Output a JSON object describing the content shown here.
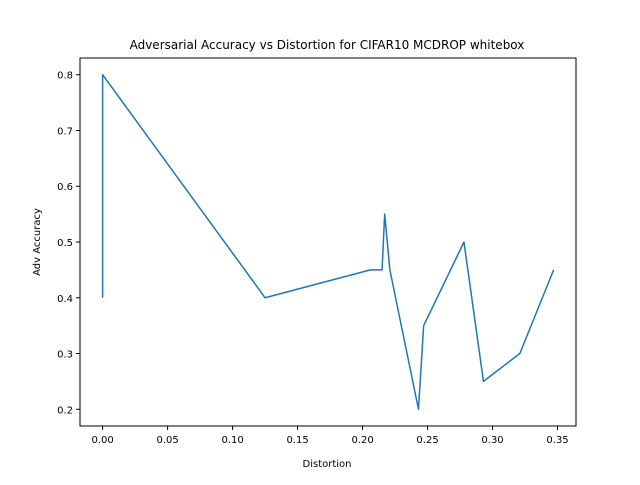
{
  "chart_data": {
    "type": "line",
    "title": "Adversarial Accuracy vs Distortion for CIFAR10 MCDROP whitebox",
    "xlabel": "Distortion",
    "ylabel": "Adv Accuracy",
    "xlim": [
      -0.0174,
      0.3642
    ],
    "ylim": [
      0.17,
      0.83
    ],
    "xticks": [
      0.0,
      0.05,
      0.1,
      0.15,
      0.2,
      0.25,
      0.3,
      0.35
    ],
    "xtick_labels": [
      "0.00",
      "0.05",
      "0.10",
      "0.15",
      "0.20",
      "0.25",
      "0.30",
      "0.35"
    ],
    "yticks": [
      0.2,
      0.3,
      0.4,
      0.5,
      0.6,
      0.7,
      0.8
    ],
    "ytick_labels": [
      "0.2",
      "0.3",
      "0.4",
      "0.5",
      "0.6",
      "0.7",
      "0.8"
    ],
    "grid": false,
    "series": [
      {
        "color": "#1f77b4",
        "x": [
          0.0,
          0.0,
          0.125,
          0.206,
          0.215,
          0.217,
          0.221,
          0.243,
          0.247,
          0.278,
          0.293,
          0.321,
          0.347
        ],
        "y": [
          0.4,
          0.8,
          0.4,
          0.45,
          0.45,
          0.55,
          0.45,
          0.2,
          0.35,
          0.5,
          0.25,
          0.3,
          0.45
        ]
      }
    ]
  }
}
